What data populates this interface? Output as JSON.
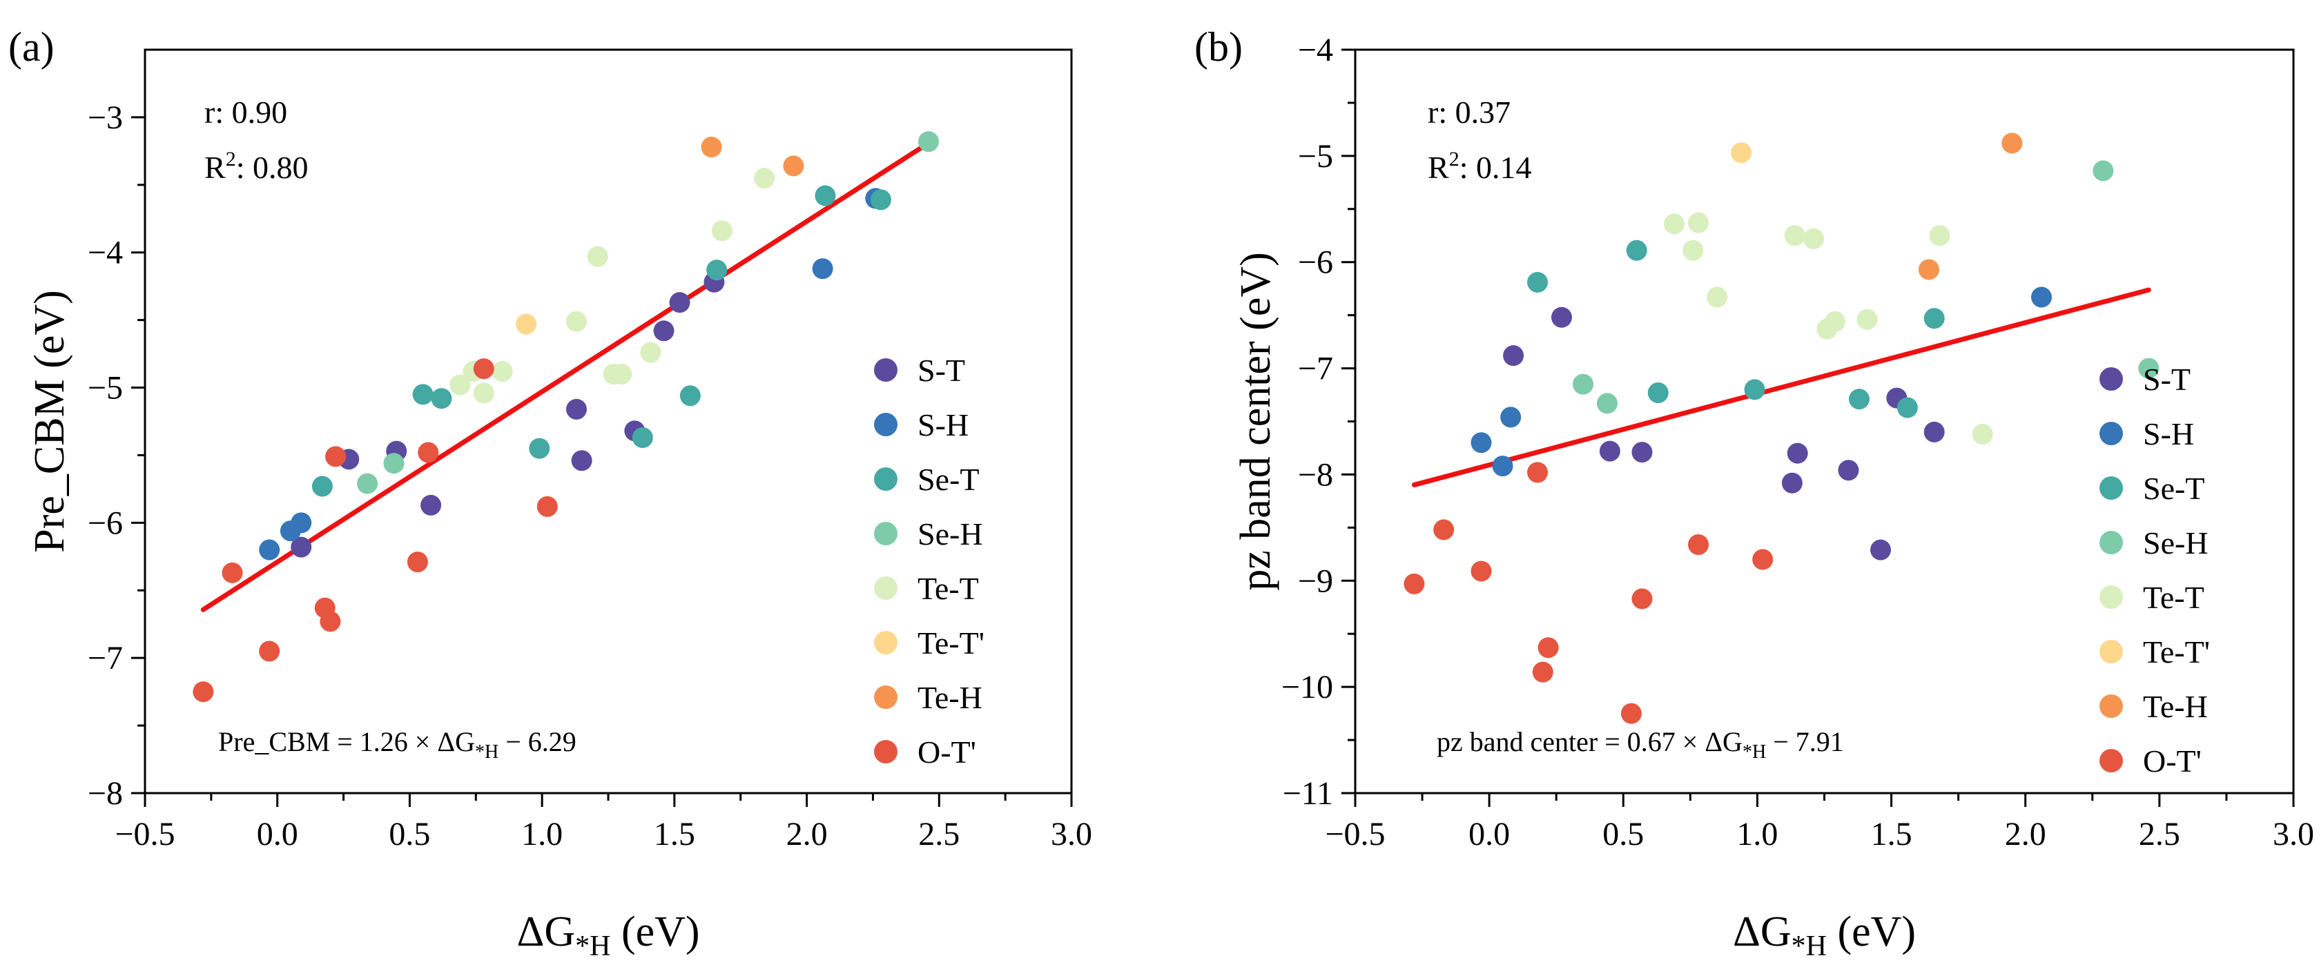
{
  "chart_data": [
    {
      "panel_label": "(a)",
      "type": "scatter",
      "xlabel": "ΔG*H (eV)",
      "xlabel_main": "ΔG",
      "xlabel_sub": "*H",
      "xlabel_unit": " (eV)",
      "ylabel": "Pre_CBM (eV)",
      "xlim": [
        -0.5,
        3.0
      ],
      "ylim": [
        -8,
        -2.5
      ],
      "xticks": [
        -0.5,
        0.0,
        0.5,
        1.0,
        1.5,
        2.0,
        2.5,
        3.0
      ],
      "xtick_labels": [
        "−0.5",
        "0.0",
        "0.5",
        "1.0",
        "1.5",
        "2.0",
        "2.5",
        "3.0"
      ],
      "yticks": [
        -8,
        -7,
        -6,
        -5,
        -4,
        -3
      ],
      "ytick_labels": [
        "−8",
        "−7",
        "−6",
        "−5",
        "−4",
        "−3"
      ],
      "stats": {
        "r_label": "r: 0.90",
        "R2_prefix": "R",
        "R2_sup": "2",
        "R2_value": ": 0.80"
      },
      "fit": {
        "slope": 1.26,
        "intercept": -6.29,
        "x_range": [
          -0.28,
          2.45
        ],
        "color": "#ee1111",
        "eq_prefix": "Pre_CBM = 1.26 × ΔG",
        "eq_sub": "*H",
        "eq_suffix": " − 6.29"
      },
      "legend_position": "right",
      "series": [
        {
          "name": "S-T",
          "color": "#5b4b9e",
          "points": [
            [
              0.09,
              -6.18
            ],
            [
              0.27,
              -5.53
            ],
            [
              0.45,
              -5.47
            ],
            [
              0.58,
              -5.87
            ],
            [
              1.13,
              -5.16
            ],
            [
              1.15,
              -5.54
            ],
            [
              1.35,
              -5.32
            ],
            [
              1.46,
              -4.58
            ],
            [
              1.52,
              -4.37
            ],
            [
              1.65,
              -4.22
            ]
          ]
        },
        {
          "name": "S-H",
          "color": "#3575b8",
          "points": [
            [
              -0.03,
              -6.2
            ],
            [
              0.05,
              -6.06
            ],
            [
              0.09,
              -6.0
            ],
            [
              2.06,
              -4.12
            ],
            [
              2.26,
              -3.6
            ]
          ]
        },
        {
          "name": "Se-T",
          "color": "#44a8a3",
          "points": [
            [
              0.17,
              -5.73
            ],
            [
              0.55,
              -5.05
            ],
            [
              0.62,
              -5.08
            ],
            [
              0.99,
              -5.45
            ],
            [
              1.38,
              -5.37
            ],
            [
              1.56,
              -5.06
            ],
            [
              1.66,
              -4.13
            ],
            [
              2.07,
              -3.58
            ],
            [
              2.28,
              -3.61
            ]
          ]
        },
        {
          "name": "Se-H",
          "color": "#7dcba8",
          "points": [
            [
              0.34,
              -5.71
            ],
            [
              0.44,
              -5.56
            ],
            [
              2.46,
              -3.18
            ]
          ]
        },
        {
          "name": "Te-T",
          "color": "#d9efbe",
          "points": [
            [
              0.69,
              -4.98
            ],
            [
              0.74,
              -4.88
            ],
            [
              0.78,
              -5.04
            ],
            [
              0.85,
              -4.88
            ],
            [
              1.13,
              -4.51
            ],
            [
              1.21,
              -4.03
            ],
            [
              1.27,
              -4.9
            ],
            [
              1.3,
              -4.9
            ],
            [
              1.41,
              -4.74
            ],
            [
              1.68,
              -3.84
            ],
            [
              1.84,
              -3.45
            ]
          ]
        },
        {
          "name": "Te-T'",
          "color": "#fdd88c",
          "points": [
            [
              0.94,
              -4.53
            ]
          ]
        },
        {
          "name": "Te-H",
          "color": "#f6944f",
          "points": [
            [
              1.64,
              -3.22
            ],
            [
              1.95,
              -3.36
            ]
          ]
        },
        {
          "name": "O-T'",
          "color": "#e6553f",
          "points": [
            [
              -0.28,
              -7.25
            ],
            [
              -0.17,
              -6.37
            ],
            [
              -0.03,
              -6.95
            ],
            [
              0.18,
              -6.63
            ],
            [
              0.2,
              -6.73
            ],
            [
              0.22,
              -5.51
            ],
            [
              0.53,
              -6.29
            ],
            [
              0.57,
              -5.48
            ],
            [
              0.78,
              -4.86
            ],
            [
              1.02,
              -5.88
            ]
          ]
        }
      ]
    },
    {
      "panel_label": "(b)",
      "type": "scatter",
      "xlabel": "ΔG*H (eV)",
      "xlabel_main": "ΔG",
      "xlabel_sub": "*H",
      "xlabel_unit": " (eV)",
      "ylabel": "pz band center (eV)",
      "xlim": [
        -0.5,
        3.0
      ],
      "ylim": [
        -11,
        -4
      ],
      "xticks": [
        -0.5,
        0.0,
        0.5,
        1.0,
        1.5,
        2.0,
        2.5,
        3.0
      ],
      "xtick_labels": [
        "−0.5",
        "0.0",
        "0.5",
        "1.0",
        "1.5",
        "2.0",
        "2.5",
        "3.0"
      ],
      "yticks": [
        -11,
        -10,
        -9,
        -8,
        -7,
        -6,
        -5,
        -4
      ],
      "ytick_labels": [
        "−11",
        "−10",
        "−9",
        "−8",
        "−7",
        "−6",
        "−5",
        "−4"
      ],
      "stats": {
        "r_label": "r: 0.37",
        "R2_prefix": "R",
        "R2_sup": "2",
        "R2_value": ": 0.14"
      },
      "fit": {
        "slope": 0.67,
        "intercept": -7.91,
        "x_range": [
          -0.28,
          2.46
        ],
        "color": "#ee1111",
        "eq_prefix": "pz band center = 0.67 × ΔG",
        "eq_sub": "*H",
        "eq_suffix": " − 7.91"
      },
      "legend_position": "right",
      "series": [
        {
          "name": "S-T",
          "color": "#5b4b9e",
          "points": [
            [
              0.09,
              -6.88
            ],
            [
              0.27,
              -6.52
            ],
            [
              0.45,
              -7.78
            ],
            [
              0.57,
              -7.79
            ],
            [
              1.13,
              -8.08
            ],
            [
              1.15,
              -7.8
            ],
            [
              1.34,
              -7.96
            ],
            [
              1.46,
              -8.71
            ],
            [
              1.52,
              -7.28
            ],
            [
              1.66,
              -7.6
            ]
          ]
        },
        {
          "name": "S-H",
          "color": "#3575b8",
          "points": [
            [
              -0.03,
              -7.7
            ],
            [
              0.05,
              -7.92
            ],
            [
              0.08,
              -7.46
            ],
            [
              2.06,
              -6.33
            ]
          ]
        },
        {
          "name": "Se-T",
          "color": "#44a8a3",
          "points": [
            [
              0.18,
              -6.19
            ],
            [
              0.55,
              -5.89
            ],
            [
              0.63,
              -7.23
            ],
            [
              0.99,
              -7.2
            ],
            [
              1.38,
              -7.29
            ],
            [
              1.56,
              -7.37
            ],
            [
              1.66,
              -6.53
            ]
          ]
        },
        {
          "name": "Se-H",
          "color": "#7dcba8",
          "points": [
            [
              0.35,
              -7.15
            ],
            [
              0.44,
              -7.33
            ],
            [
              2.29,
              -5.14
            ],
            [
              2.46,
              -7.0
            ]
          ]
        },
        {
          "name": "Te-T",
          "color": "#d9efbe",
          "points": [
            [
              0.69,
              -5.64
            ],
            [
              0.76,
              -5.89
            ],
            [
              0.78,
              -5.63
            ],
            [
              0.85,
              -6.33
            ],
            [
              1.14,
              -5.75
            ],
            [
              1.21,
              -5.78
            ],
            [
              1.26,
              -6.63
            ],
            [
              1.29,
              -6.56
            ],
            [
              1.41,
              -6.54
            ],
            [
              1.68,
              -5.75
            ],
            [
              1.84,
              -7.62
            ]
          ]
        },
        {
          "name": "Te-T'",
          "color": "#fdd88c",
          "points": [
            [
              0.94,
              -4.97
            ]
          ]
        },
        {
          "name": "Te-H",
          "color": "#f6944f",
          "points": [
            [
              1.64,
              -6.07
            ],
            [
              1.95,
              -4.88
            ]
          ]
        },
        {
          "name": "O-T'",
          "color": "#e6553f",
          "points": [
            [
              -0.28,
              -9.03
            ],
            [
              -0.17,
              -8.52
            ],
            [
              -0.03,
              -8.91
            ],
            [
              0.18,
              -7.98
            ],
            [
              0.2,
              -9.86
            ],
            [
              0.22,
              -9.63
            ],
            [
              0.53,
              -10.25
            ],
            [
              0.57,
              -9.17
            ],
            [
              0.78,
              -8.66
            ],
            [
              1.02,
              -8.8
            ]
          ]
        }
      ]
    }
  ]
}
